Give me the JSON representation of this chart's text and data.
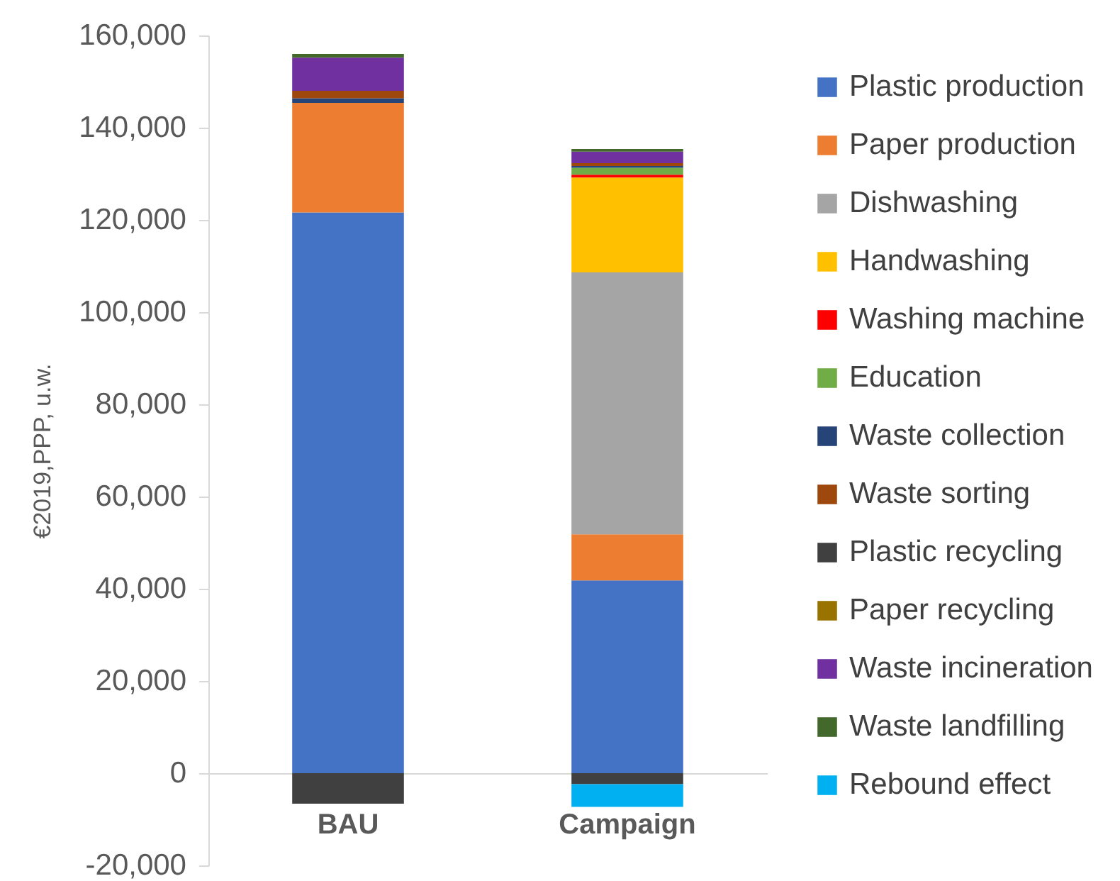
{
  "chart_data": {
    "type": "bar",
    "stacked": true,
    "ylabel": "€2019,PPP, u.w.",
    "categories": [
      "BAU",
      "Campaign"
    ],
    "series": [
      {
        "name": "Plastic production",
        "color": "#4472c4",
        "values": [
          121600,
          41800
        ]
      },
      {
        "name": "Paper production",
        "color": "#ed7d31",
        "values": [
          23800,
          10000
        ]
      },
      {
        "name": "Dishwashing",
        "color": "#a5a5a5",
        "values": [
          null,
          56800
        ]
      },
      {
        "name": "Handwashing",
        "color": "#ffc000",
        "values": [
          null,
          20600
        ]
      },
      {
        "name": "Washing machine",
        "color": "#ff0000",
        "values": [
          null,
          600
        ]
      },
      {
        "name": "Education",
        "color": "#70ad47",
        "values": [
          null,
          1500
        ]
      },
      {
        "name": "Waste collection",
        "color": "#264478",
        "values": [
          1000,
          400
        ]
      },
      {
        "name": "Waste sorting",
        "color": "#9e480e",
        "values": [
          1600,
          600
        ]
      },
      {
        "name": "Plastic recycling",
        "color": "#404040",
        "values": [
          -6600,
          -2400
        ]
      },
      {
        "name": "Paper recycling",
        "color": "#997300",
        "values": [
          null,
          null
        ]
      },
      {
        "name": "Waste incineration",
        "color": "#7030a0",
        "values": [
          7200,
          2500
        ]
      },
      {
        "name": "Waste landfilling",
        "color": "#43682b",
        "values": [
          800,
          600
        ]
      },
      {
        "name": "Rebound effect",
        "color": "#00b0f0",
        "values": [
          null,
          -4900
        ]
      }
    ],
    "ylim": [
      -20000,
      160000
    ],
    "yticks": [
      {
        "value": -20000,
        "label": "-20,000"
      },
      {
        "value": 0,
        "label": "0"
      },
      {
        "value": 20000,
        "label": "20,000"
      },
      {
        "value": 40000,
        "label": "40,000"
      },
      {
        "value": 60000,
        "label": "60,000"
      },
      {
        "value": 80000,
        "label": "80,000"
      },
      {
        "value": 100000,
        "label": "100,000"
      },
      {
        "value": 120000,
        "label": "120,000"
      },
      {
        "value": 140000,
        "label": "140,000"
      },
      {
        "value": 160000,
        "label": "160,000"
      }
    ],
    "legend": "right"
  }
}
